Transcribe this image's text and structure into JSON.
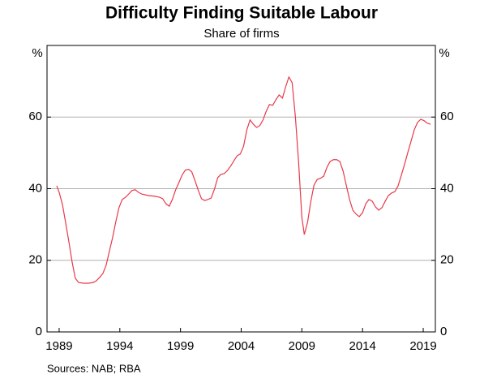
{
  "chart_data": {
    "type": "line",
    "title": "Difficulty Finding Suitable Labour",
    "subtitle": "Share of firms",
    "y_label": "%",
    "note": "Sources:   NAB; RBA",
    "x": [
      1988.8,
      1989.0,
      1989.27,
      1989.53,
      1989.8,
      1990.07,
      1990.33,
      1990.6,
      1991.0,
      1991.4,
      1991.8,
      1992.07,
      1992.33,
      1992.6,
      1992.87,
      1993.13,
      1993.4,
      1993.67,
      1993.93,
      1994.2,
      1994.47,
      1994.73,
      1995.0,
      1995.27,
      1995.53,
      1995.8,
      1996.33,
      1996.87,
      1997.27,
      1997.53,
      1997.8,
      1998.07,
      1998.33,
      1998.6,
      1998.87,
      1999.13,
      1999.4,
      1999.67,
      1999.93,
      2000.2,
      2000.47,
      2000.73,
      2001.0,
      2001.27,
      2001.53,
      2001.8,
      2002.07,
      2002.33,
      2002.6,
      2002.87,
      2003.13,
      2003.4,
      2003.67,
      2003.93,
      2004.2,
      2004.47,
      2004.73,
      2005.0,
      2005.27,
      2005.53,
      2005.8,
      2006.07,
      2006.33,
      2006.6,
      2006.87,
      2007.13,
      2007.4,
      2007.67,
      2007.93,
      2008.2,
      2008.47,
      2008.73,
      2009.0,
      2009.2,
      2009.47,
      2009.73,
      2010.0,
      2010.27,
      2010.53,
      2010.8,
      2011.07,
      2011.33,
      2011.6,
      2011.87,
      2012.13,
      2012.4,
      2012.67,
      2012.93,
      2013.2,
      2013.47,
      2013.73,
      2014.0,
      2014.27,
      2014.53,
      2014.8,
      2015.07,
      2015.33,
      2015.6,
      2015.87,
      2016.13,
      2016.4,
      2016.67,
      2016.93,
      2017.2,
      2017.47,
      2017.73,
      2018.0,
      2018.27,
      2018.53,
      2018.8,
      2019.07,
      2019.33,
      2019.6
    ],
    "series": [
      {
        "name": "Share of firms",
        "color": "#e8394a",
        "values": [
          40.8,
          39.0,
          35.6,
          30.6,
          25.2,
          19.5,
          15.0,
          13.8,
          13.6,
          13.6,
          13.8,
          14.3,
          15.2,
          16.3,
          18.6,
          22.4,
          26.3,
          30.8,
          34.7,
          37.0,
          37.6,
          38.5,
          39.5,
          39.7,
          39.0,
          38.5,
          38.1,
          37.9,
          37.6,
          37.2,
          35.8,
          35.1,
          37.0,
          39.7,
          41.7,
          43.8,
          45.2,
          45.4,
          44.7,
          42.2,
          39.5,
          37.2,
          36.7,
          37.0,
          37.4,
          39.9,
          43.1,
          44.0,
          44.2,
          45.1,
          46.3,
          47.8,
          49.2,
          49.7,
          51.9,
          56.5,
          59.2,
          58.0,
          57.1,
          57.6,
          59.2,
          61.7,
          63.5,
          63.3,
          64.9,
          66.2,
          65.3,
          68.5,
          71.2,
          69.6,
          59.9,
          47.4,
          32.0,
          27.2,
          30.6,
          36.3,
          41.0,
          42.6,
          42.9,
          43.5,
          46.0,
          47.6,
          48.1,
          48.1,
          47.6,
          44.9,
          40.8,
          37.0,
          34.0,
          32.9,
          32.2,
          33.3,
          35.8,
          37.0,
          36.5,
          34.9,
          34.0,
          34.7,
          36.5,
          38.1,
          38.8,
          39.2,
          40.8,
          43.8,
          46.9,
          50.1,
          53.3,
          56.5,
          58.5,
          59.4,
          59.0,
          58.3,
          58.0
        ]
      }
    ],
    "xlim": [
      1988,
      2020
    ],
    "xticks": [
      1989,
      1994,
      1999,
      2004,
      2009,
      2014,
      2019
    ],
    "ylim": [
      0,
      80
    ],
    "yticks": [
      0,
      20,
      40,
      60
    ],
    "grid": true
  }
}
